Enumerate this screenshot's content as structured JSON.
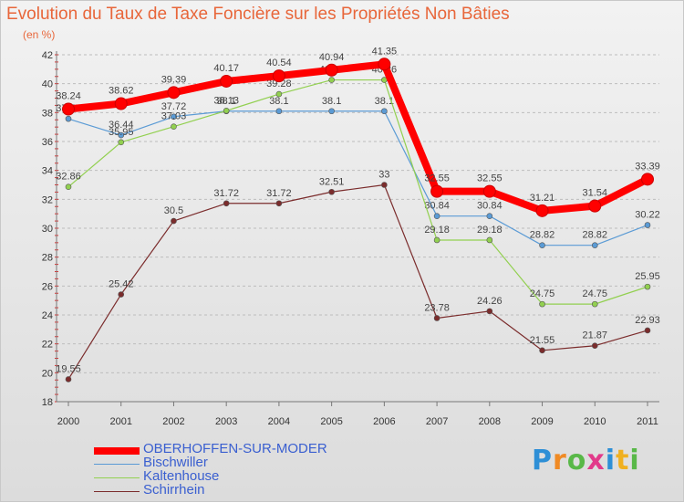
{
  "chart_data": {
    "type": "line",
    "title": "Evolution du Taux de Taxe Foncière sur les Propriétés Non Bâties",
    "subtitle": "(en %)",
    "x": [
      "2000",
      "2001",
      "2002",
      "2003",
      "2004",
      "2005",
      "2006",
      "2007",
      "2008",
      "2009",
      "2010",
      "2011"
    ],
    "ylim": [
      18,
      42
    ],
    "yticks": [
      18,
      20,
      22,
      24,
      26,
      28,
      30,
      32,
      34,
      36,
      38,
      40,
      42
    ],
    "grid": "horizontal dashed",
    "legend_position": "bottom-left",
    "series": [
      {
        "name": "OBERHOFFEN-SUR-MODER",
        "color": "#ff0000",
        "emphasis": true,
        "values": [
          38.24,
          38.62,
          39.39,
          40.17,
          40.54,
          40.94,
          41.35,
          32.55,
          32.55,
          31.21,
          31.54,
          33.39
        ]
      },
      {
        "name": "Bischwiller",
        "color": "#5b9bd5",
        "emphasis": false,
        "values": [
          37.57,
          36.44,
          37.72,
          38.1,
          38.1,
          38.1,
          38.1,
          30.84,
          30.84,
          28.82,
          28.82,
          30.22
        ]
      },
      {
        "name": "Kaltenhouse",
        "color": "#92d050",
        "emphasis": false,
        "values": [
          32.86,
          35.95,
          37.03,
          38.13,
          39.28,
          40.26,
          40.26,
          29.18,
          29.18,
          24.75,
          24.75,
          25.95
        ]
      },
      {
        "name": "Schirrhein",
        "color": "#7b2c2c",
        "emphasis": false,
        "values": [
          19.55,
          25.42,
          30.5,
          31.72,
          31.72,
          32.51,
          33.0,
          23.78,
          24.26,
          21.55,
          21.87,
          22.93
        ]
      }
    ]
  },
  "legend": {
    "items": [
      "OBERHOFFEN-SUR-MODER",
      "Bischwiller",
      "Kaltenhouse",
      "Schirrhein"
    ]
  },
  "logo": {
    "letters": [
      "P",
      "r",
      "o",
      "x",
      "i",
      "t",
      "i"
    ]
  }
}
